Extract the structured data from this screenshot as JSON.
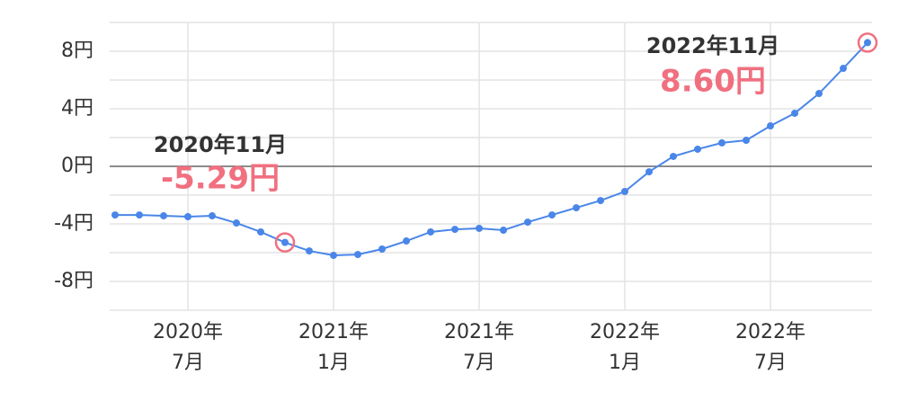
{
  "chart_data": {
    "type": "line",
    "categories": [
      null,
      null,
      null,
      "2020年\n7月",
      null,
      null,
      null,
      null,
      null,
      "2021年\n1月",
      null,
      null,
      null,
      null,
      null,
      "2021年\n7月",
      null,
      null,
      null,
      null,
      null,
      "2022年\n1月",
      null,
      null,
      null,
      null,
      null,
      "2022年\n7月",
      null,
      null,
      null,
      null
    ],
    "series": [
      {
        "color": "#4a86e8",
        "values": [
          -3.38,
          -3.38,
          -3.44,
          -3.5,
          -3.44,
          -3.94,
          -4.56,
          -5.29,
          -5.88,
          -6.19,
          -6.13,
          -5.75,
          -5.19,
          -4.56,
          -4.38,
          -4.31,
          -4.44,
          -3.88,
          -3.38,
          -2.88,
          -2.38,
          -1.75,
          -0.38,
          0.69,
          1.19,
          1.63,
          1.81,
          2.81,
          3.69,
          5.06,
          6.81,
          8.6
        ],
        "value_labels": [
          null,
          null,
          null,
          null,
          null,
          null,
          null,
          "-5.29円",
          null,
          null,
          null,
          null,
          null,
          null,
          null,
          null,
          null,
          null,
          null,
          null,
          null,
          null,
          null,
          null,
          null,
          null,
          null,
          null,
          null,
          null,
          null,
          "8.60円"
        ]
      }
    ],
    "annotations": [
      "2020年11月",
      "2022年11月"
    ],
    "highlight_color": "#f07080",
    "ylim": [
      -10,
      10
    ],
    "yticks": [
      {
        "value": 8,
        "label": "8円"
      },
      {
        "value": 4,
        "label": "4円"
      },
      {
        "value": 0,
        "label": "0円"
      },
      {
        "value": -4,
        "label": "-4円"
      },
      {
        "value": -8,
        "label": "-8円"
      }
    ],
    "minor_yticks": [
      10,
      6,
      2,
      -2,
      -6,
      -10
    ],
    "grid": true
  }
}
